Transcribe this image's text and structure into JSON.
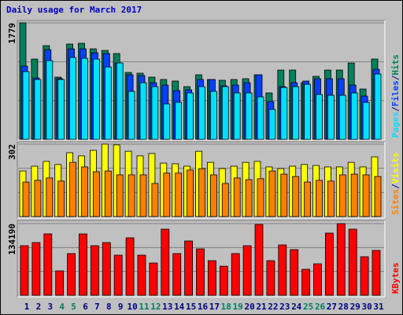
{
  "chart_data": [
    {
      "type": "bar",
      "title": "Daily usage for March 2017",
      "ylim": [
        0,
        1779
      ],
      "yticks": [
        1779
      ],
      "legend_separator": "/",
      "series": [
        {
          "name": "Hits",
          "color": "#00805c",
          "values": [
            1779,
            1226,
            1430,
            950,
            1455,
            1467,
            1382,
            1358,
            1310,
            1022,
            1010,
            950,
            914,
            890,
            805,
            986,
            914,
            902,
            914,
            926,
            986,
            709,
            1058,
            1058,
            865,
            962,
            1058,
            1058,
            1166,
            769,
            1226
          ]
        },
        {
          "name": "Files",
          "color": "#0040ff",
          "values": [
            1118,
            937,
            1370,
            926,
            1382,
            1382,
            1322,
            1310,
            1166,
            986,
            974,
            865,
            829,
            745,
            757,
            914,
            914,
            817,
            829,
            865,
            986,
            577,
            805,
            865,
            890,
            926,
            926,
            926,
            829,
            661,
            1070
          ]
        },
        {
          "name": "Pages",
          "color": "#00e0ff",
          "values": [
            1034,
            914,
            1202,
            914,
            1250,
            1238,
            1226,
            1106,
            1166,
            733,
            865,
            805,
            541,
            565,
            709,
            805,
            733,
            805,
            709,
            709,
            649,
            457,
            793,
            805,
            841,
            685,
            673,
            673,
            709,
            565,
            998
          ]
        }
      ]
    },
    {
      "type": "bar",
      "ylim": [
        0,
        302
      ],
      "yticks": [
        302
      ],
      "legend_separator": "/",
      "series": [
        {
          "name": "Visits",
          "color": "#ffff00",
          "values": [
            190,
            210,
            230,
            217,
            266,
            253,
            276,
            302,
            299,
            272,
            253,
            263,
            223,
            220,
            210,
            272,
            226,
            200,
            210,
            226,
            230,
            207,
            200,
            210,
            217,
            213,
            207,
            207,
            226,
            207,
            249
          ]
        },
        {
          "name": "Sites",
          "color": "#ff8000",
          "values": [
            144,
            151,
            161,
            148,
            226,
            207,
            187,
            190,
            174,
            174,
            174,
            138,
            181,
            181,
            194,
            200,
            174,
            138,
            161,
            154,
            158,
            190,
            177,
            167,
            144,
            151,
            148,
            174,
            177,
            174,
            167
          ]
        }
      ]
    },
    {
      "type": "bar",
      "ylim": [
        0,
        134190
      ],
      "yticks": [
        134190
      ],
      "categories": [
        "1",
        "2",
        "3",
        "4",
        "5",
        "6",
        "7",
        "8",
        "9",
        "10",
        "11",
        "12",
        "13",
        "14",
        "15",
        "16",
        "17",
        "18",
        "19",
        "20",
        "21",
        "22",
        "23",
        "24",
        "25",
        "26",
        "27",
        "28",
        "29",
        "30",
        "31"
      ],
      "category_colors": [
        "#000080",
        "#000080",
        "#000080",
        "#008060",
        "#008060",
        "#000080",
        "#000080",
        "#000080",
        "#000080",
        "#000080",
        "#008060",
        "#008060",
        "#000080",
        "#000080",
        "#000080",
        "#000080",
        "#000080",
        "#008060",
        "#008060",
        "#000080",
        "#000080",
        "#000080",
        "#000080",
        "#000080",
        "#008060",
        "#008060",
        "#000080",
        "#000080",
        "#000080",
        "#000080",
        "#000080"
      ],
      "series": [
        {
          "name": "KBytes",
          "color": "#ff0000",
          "values": [
            92900,
            98800,
            115020,
            45713,
            78154,
            115020,
            92900,
            98800,
            75205,
            107646,
            75205,
            60459,
            123866,
            78154,
            101747,
            87001,
            64882,
            54560,
            78154,
            92900,
            132714,
            64882,
            94374,
            85527,
            48662,
            58984,
            116493,
            134190,
            123866,
            72255,
            84052
          ]
        }
      ]
    }
  ]
}
